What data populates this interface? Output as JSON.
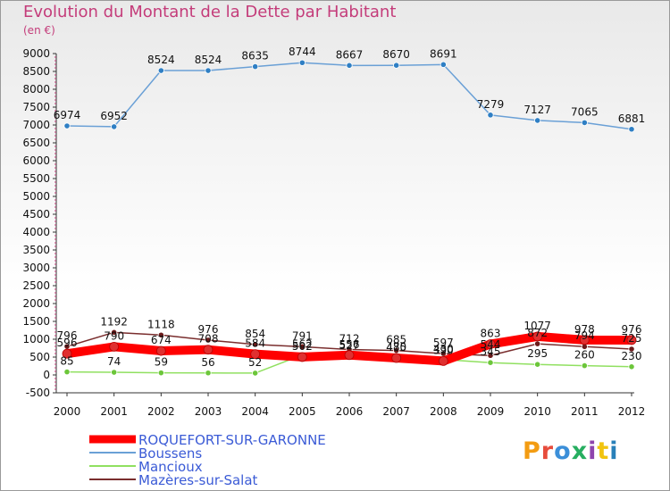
{
  "header": {
    "title": "Evolution du Montant de la Dette par Habitant",
    "unit": "(en €)"
  },
  "logo": {
    "text": "Proxiti",
    "colors": [
      "#f39c12",
      "#e74c3c",
      "#3b8fd9",
      "#27ae60",
      "#8e44ad",
      "#f1c40f",
      "#2980b9"
    ]
  },
  "chart_data": {
    "type": "line",
    "title": "Evolution du Montant de la Dette par Habitant",
    "ylabel": "(en €)",
    "xlabel": "",
    "ylim": [
      -500,
      9000
    ],
    "yticks": [
      -500,
      0,
      500,
      1000,
      1500,
      2000,
      2500,
      3000,
      3500,
      4000,
      4500,
      5000,
      5500,
      6000,
      6500,
      7000,
      7500,
      8000,
      8500,
      9000
    ],
    "categories": [
      "2000",
      "2001",
      "2002",
      "2003",
      "2004",
      "2005",
      "2006",
      "2007",
      "2008",
      "2009",
      "2010",
      "2011",
      "2012"
    ],
    "grid": false,
    "legend": "bottom-left",
    "series": [
      {
        "name": "ROQUEFORT-SUR-GARONNE",
        "color": "#ff0000",
        "marker": "#e03030",
        "width": "thick",
        "values": [
          596,
          790,
          674,
          708,
          584,
          502,
          556,
          475,
          390,
          863,
          1077,
          978,
          976
        ],
        "labels": [
          "596",
          "790",
          "674",
          "708",
          "584",
          "502",
          "556",
          "475",
          "390",
          "863",
          "1077",
          "978",
          "976"
        ]
      },
      {
        "name": "Boussens",
        "color": "#6aa0d6",
        "marker": "#2f7fc4",
        "width": "thin",
        "values": [
          6974,
          6952,
          8524,
          8524,
          8635,
          8744,
          8667,
          8670,
          8691,
          7279,
          7127,
          7065,
          6881
        ],
        "labels": [
          "6974",
          "6952",
          "8524",
          "8524",
          "8635",
          "8744",
          "8667",
          "8670",
          "8691",
          "7279",
          "7127",
          "7065",
          "6881"
        ]
      },
      {
        "name": "Mancioux",
        "color": "#90e060",
        "marker": "#6cc63a",
        "width": "thin",
        "values": [
          85,
          74,
          59,
          56,
          52,
          562,
          527,
          480,
          430,
          345,
          295,
          260,
          230
        ],
        "labels": [
          "85",
          "74",
          "59",
          "56",
          "52",
          "562",
          "527",
          "480",
          "430",
          "345",
          "295",
          "260",
          "230"
        ]
      },
      {
        "name": "Mazères-sur-Salat",
        "color": "#7a2e2e",
        "marker": "#6b1a1a",
        "width": "thin",
        "values": [
          796,
          1192,
          1118,
          976,
          854,
          791,
          712,
          685,
          597,
          544,
          872,
          794,
          725
        ],
        "labels": [
          "796",
          "1192",
          "1118",
          "976",
          "854",
          "791",
          "712",
          "685",
          "597",
          "544",
          "872",
          "794",
          "725"
        ]
      }
    ]
  }
}
